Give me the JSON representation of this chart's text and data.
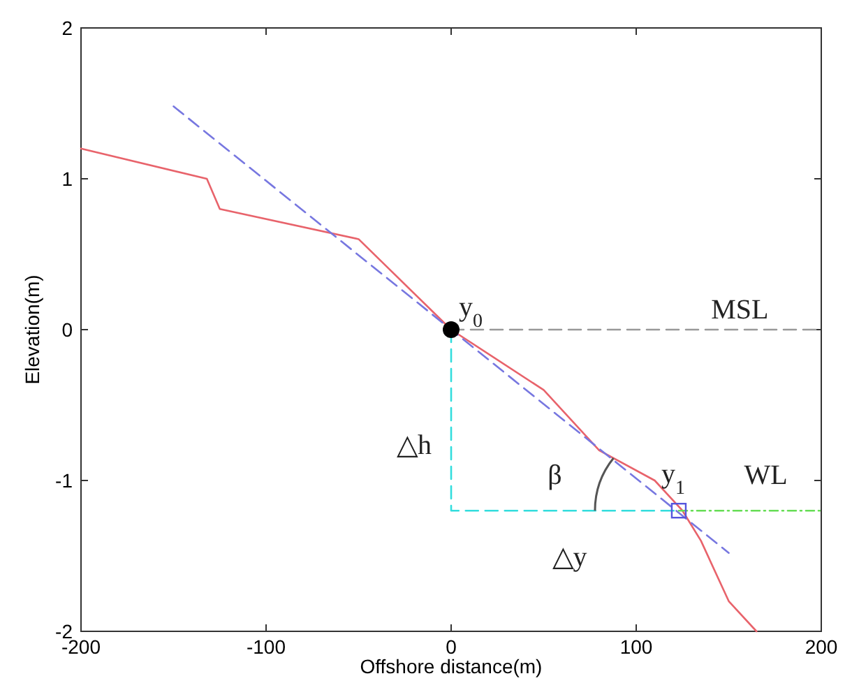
{
  "chart_data": {
    "type": "line",
    "xlabel": "Offshore distance(m)",
    "ylabel": "Elevation(m)",
    "xlim": [
      -200,
      200
    ],
    "ylim": [
      -2,
      2
    ],
    "xticks": [
      -200,
      -100,
      0,
      100,
      200
    ],
    "yticks": [
      -2,
      -1,
      0,
      1,
      2
    ],
    "grid": false,
    "series": [
      {
        "color": "#e8636b",
        "line_style": "solid",
        "x": [
          -200,
          -132,
          -125,
          -50,
          0,
          50,
          80,
          110,
          125,
          135,
          150,
          165
        ],
        "values": [
          1.2,
          1.0,
          0.8,
          0.6,
          0,
          -0.4,
          -0.8,
          -1.0,
          -1.2,
          -1.4,
          -1.8,
          -2.0
        ]
      },
      {
        "color": "#7777e0",
        "line_style": "dashed",
        "x": [
          -150,
          150
        ],
        "values": [
          1.48,
          -1.48
        ]
      },
      {
        "type": "line",
        "color": "#999999",
        "line_style": "dashed",
        "x": [
          0,
          200
        ],
        "values": [
          0,
          0
        ]
      },
      {
        "type": "line",
        "color": "#66dd55",
        "line_style": "dotted",
        "x": [
          123,
          200
        ],
        "values": [
          -1.2,
          -1.2
        ]
      },
      {
        "type": "line",
        "color": "#33dddd",
        "line_style": "dashed",
        "x": [
          0,
          0,
          123
        ],
        "values": [
          0,
          -1.2,
          -1.2
        ]
      },
      {
        "type": "scatter",
        "color": "#000000",
        "marker": "circle",
        "x": [
          0
        ],
        "values": [
          0
        ]
      },
      {
        "type": "scatter",
        "color": "#5555dd",
        "marker": "square",
        "x": [
          123
        ],
        "values": [
          -1.2
        ]
      }
    ],
    "annotations": [
      {
        "text": "y$_{0}$",
        "x": 0,
        "y": 0
      },
      "MSL",
      {
        "text": "y$_{1}$",
        "x": 123,
        "y": -1.2
      },
      "WL",
      "△h",
      "△y",
      "β"
    ]
  }
}
